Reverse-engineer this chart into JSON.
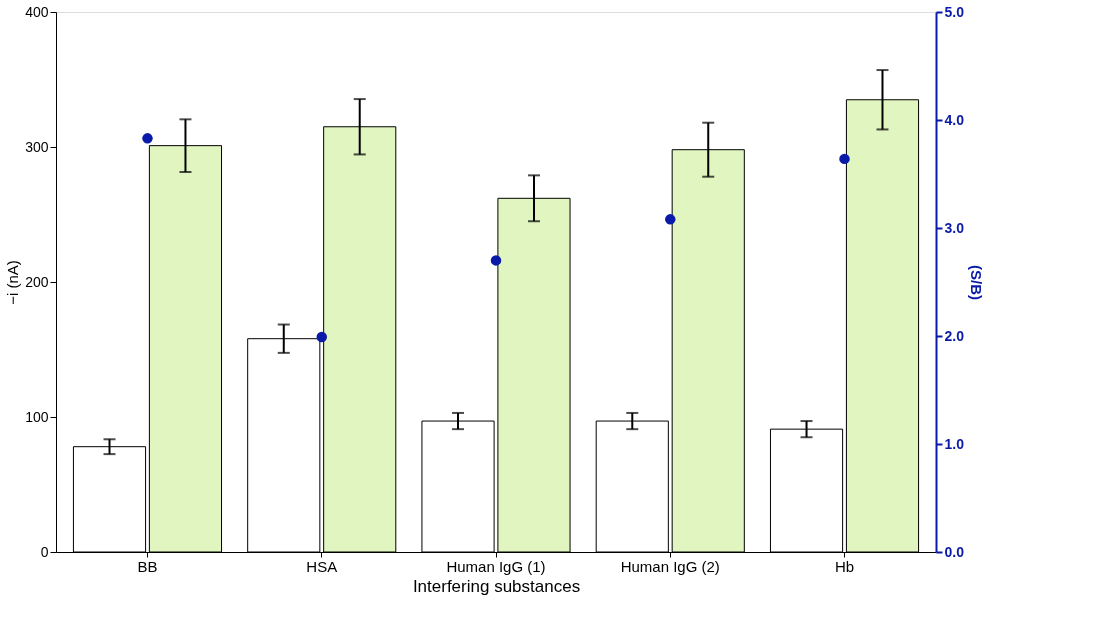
{
  "chart_data": {
    "type": "bar",
    "xlabel": "Interfering substances",
    "ylabel": "−i (nA)",
    "y2label": "(S/B)",
    "categories": [
      "BB",
      "HSA",
      "Human IgG (1)",
      "Human IgG (2)",
      "Hb"
    ],
    "series": [
      {
        "color": "#ffffff",
        "values": [
          78,
          158,
          97,
          97,
          91
        ],
        "errors": [
          5.5,
          10.5,
          6,
          6,
          6
        ]
      },
      {
        "color": "#e0f5c0",
        "values": [
          301,
          315,
          262,
          298,
          335
        ],
        "errors": [
          19.5,
          20.5,
          17,
          20,
          22
        ]
      },
      {
        "type": "scatter",
        "axis": "y2",
        "color": "#0a1aa8",
        "marker": "circle",
        "values": [
          3.83,
          1.99,
          2.7,
          3.08,
          3.64
        ]
      }
    ],
    "ylim": [
      0,
      400
    ],
    "yticks": [
      0,
      100,
      200,
      300,
      400
    ],
    "y2lim": [
      0,
      5
    ],
    "y2ticks": [
      {
        "value": 0,
        "label": "0.0"
      },
      {
        "value": 1,
        "label": "1.0"
      },
      {
        "value": 2,
        "label": "2.0"
      },
      {
        "value": 3,
        "label": "3.0"
      },
      {
        "value": 4,
        "label": "4.0"
      },
      {
        "value": 5,
        "label": "5.0"
      }
    ],
    "grid": false,
    "legend": false
  }
}
